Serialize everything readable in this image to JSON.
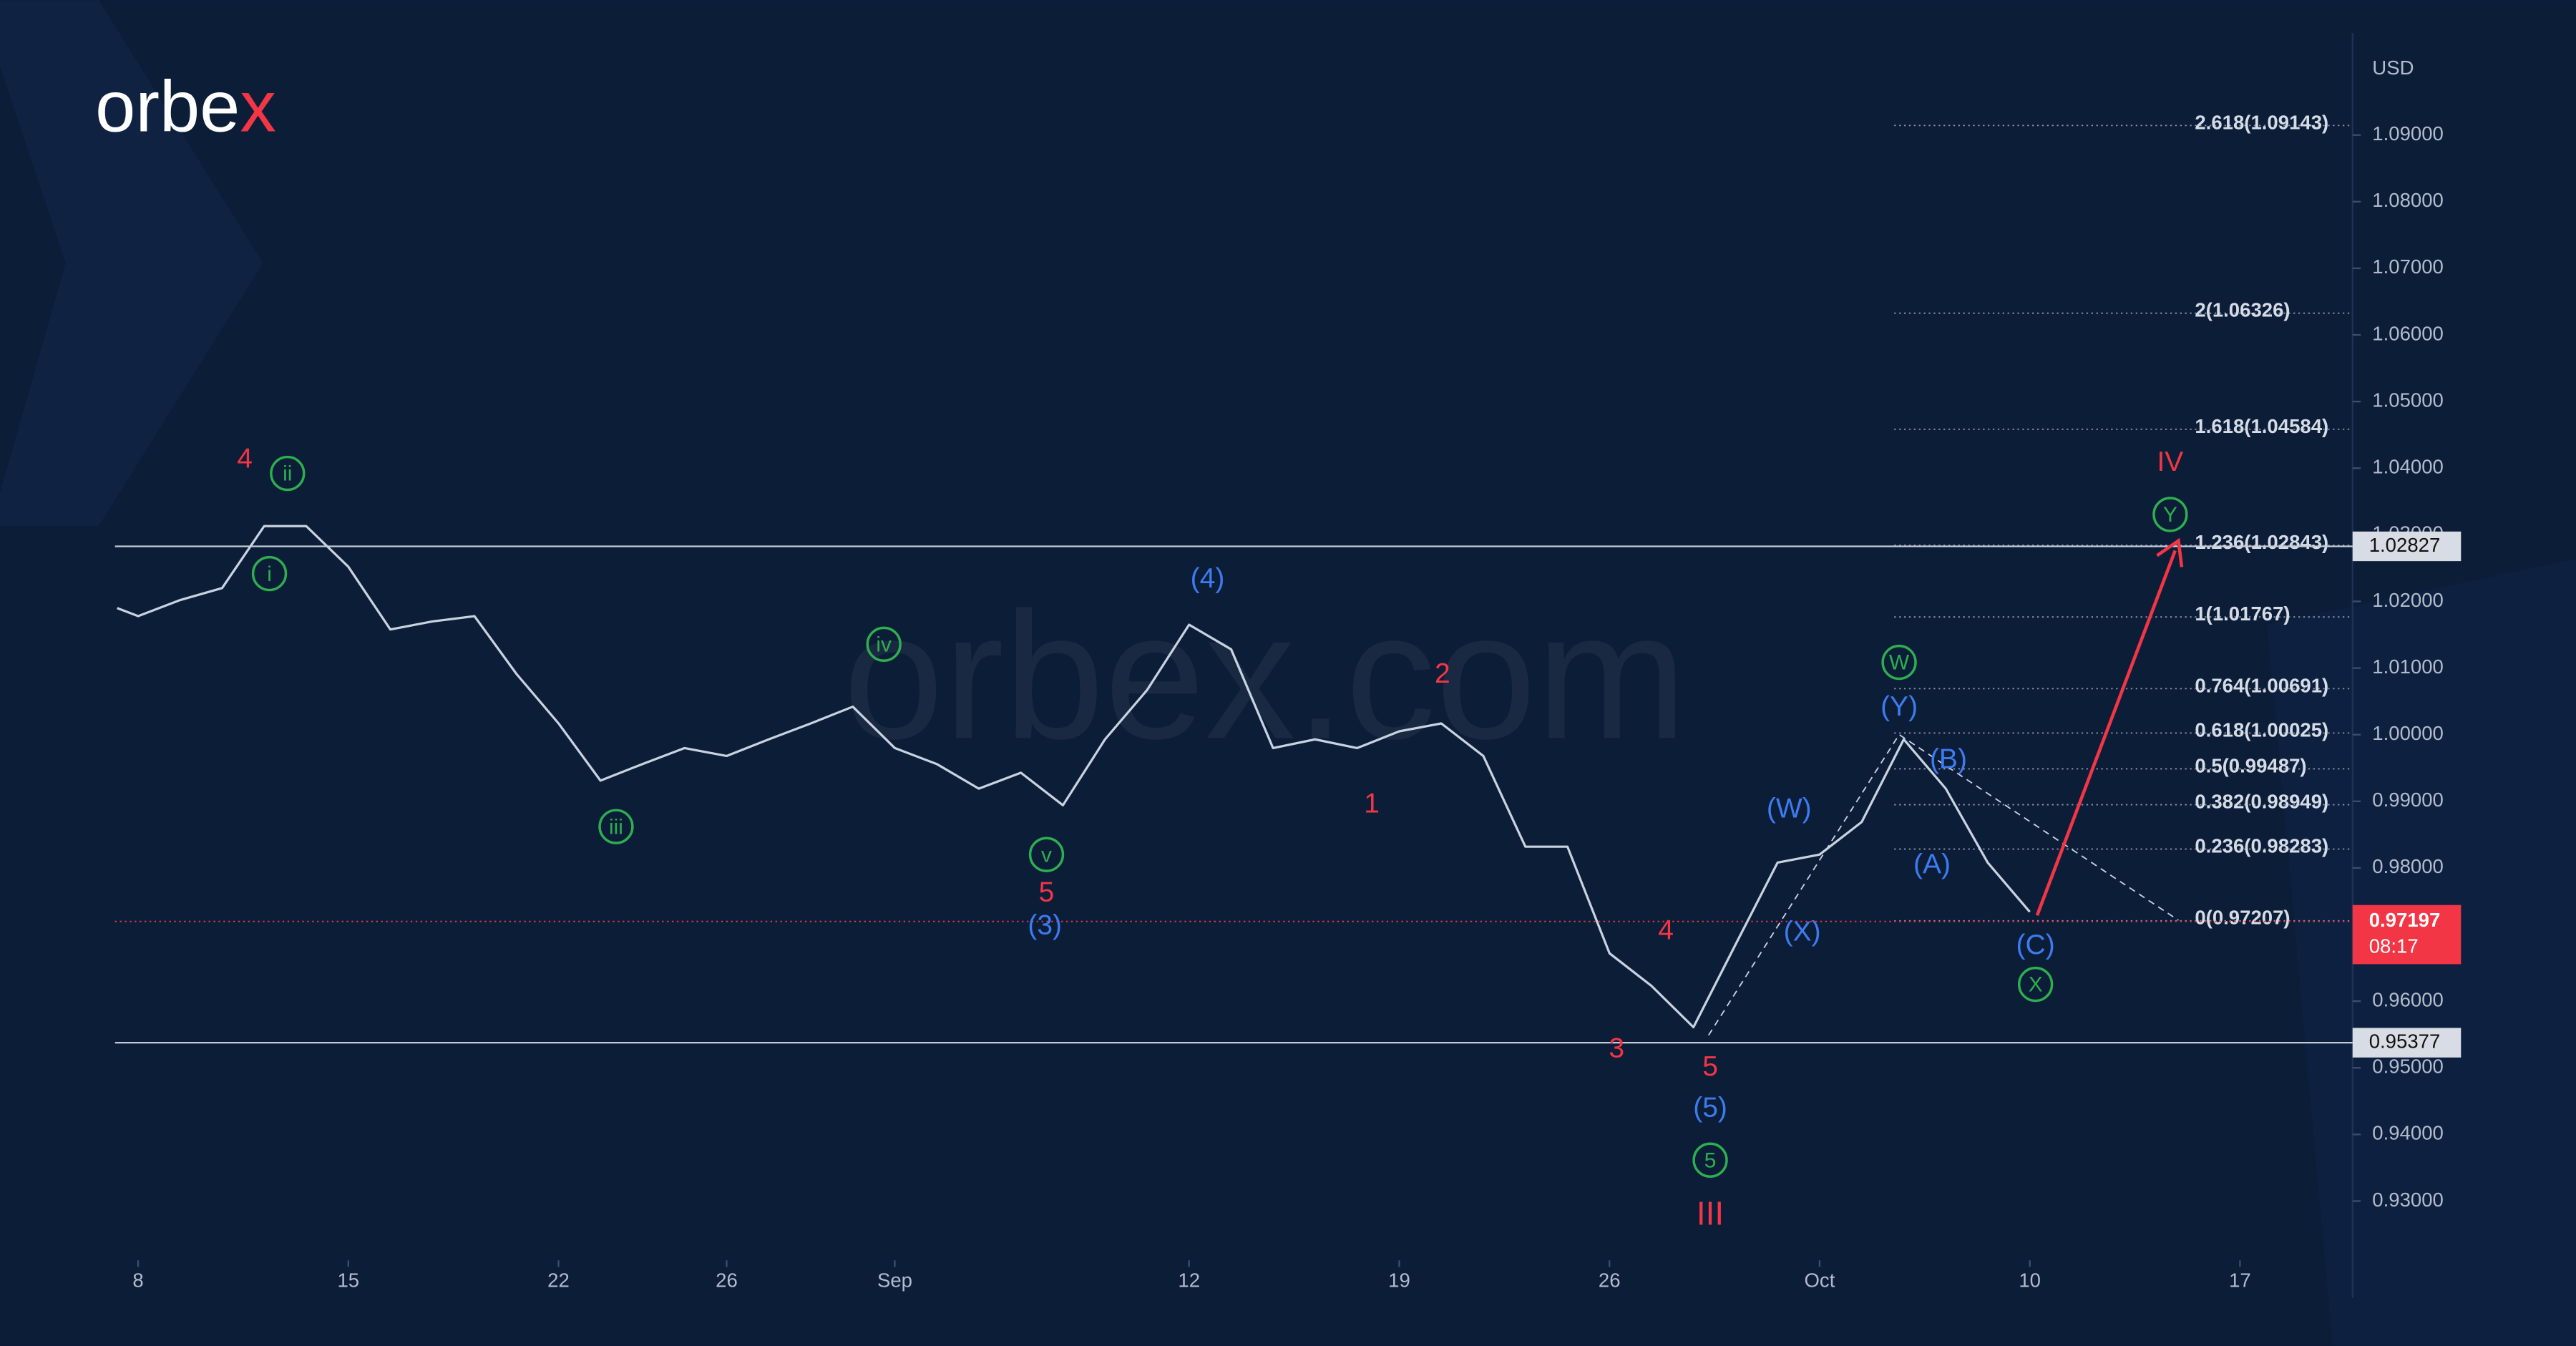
{
  "chart_data": {
    "type": "line",
    "logo": [
      "orbe",
      "x"
    ],
    "watermark": "orbex.com",
    "y_label": "USD",
    "x": [
      -0.5,
      0,
      1,
      2,
      3,
      4,
      5,
      6,
      7,
      8,
      9,
      10,
      11,
      12,
      13,
      14,
      15,
      16,
      17,
      18,
      19,
      20,
      21,
      22,
      23,
      24,
      25,
      26,
      27,
      28,
      29,
      30,
      31,
      32,
      33,
      34,
      35,
      36,
      37,
      38,
      39,
      40,
      41,
      42,
      43,
      44,
      45
    ],
    "series": [
      {
        "color": "#c9d3e0",
        "values": [
          1.019,
          1.0178,
          1.0202,
          1.022,
          1.0313,
          1.0313,
          1.0252,
          1.0158,
          1.017,
          1.0178,
          1.0091,
          1.0017,
          0.9931,
          0.9956,
          0.998,
          0.9968,
          0.9993,
          1.0017,
          1.0042,
          0.998,
          0.9956,
          0.9919,
          0.9943,
          0.9894,
          0.9993,
          1.0067,
          1.0165,
          1.0128,
          0.998,
          0.9993,
          0.998,
          1.0005,
          1.0017,
          0.9968,
          0.9832,
          0.9832,
          0.9672,
          0.9623,
          0.9561,
          0.9685,
          0.9808,
          0.982,
          0.9869,
          0.9993,
          0.9919,
          0.9808,
          0.9734
        ]
      }
    ],
    "xlim": [
      -0.55,
      52.6
    ],
    "xticks": [
      {
        "value": 0,
        "label": "8"
      },
      {
        "value": 5,
        "label": "15"
      },
      {
        "value": 10,
        "label": "22"
      },
      {
        "value": 14,
        "label": "26"
      },
      {
        "value": 18,
        "label": "Sep"
      },
      {
        "value": 25,
        "label": "12"
      },
      {
        "value": 30,
        "label": "19"
      },
      {
        "value": 35,
        "label": "26"
      },
      {
        "value": 40,
        "label": "Oct"
      },
      {
        "value": 45,
        "label": "10"
      },
      {
        "value": 50,
        "label": "17"
      }
    ],
    "ylim": [
      0.9216,
      1.1053
    ],
    "yticks": [
      {
        "value": 0.93,
        "label": "0.93000"
      },
      {
        "value": 0.94,
        "label": "0.94000"
      },
      {
        "value": 0.95,
        "label": "0.95000"
      },
      {
        "value": 0.96,
        "label": "0.96000"
      },
      {
        "value": 0.97,
        "label": "0.97000"
      },
      {
        "value": 0.98,
        "label": "0.98000"
      },
      {
        "value": 0.99,
        "label": "0.99000"
      },
      {
        "value": 1.0,
        "label": "1.00000"
      },
      {
        "value": 1.01,
        "label": "1.01000"
      },
      {
        "value": 1.02,
        "label": "1.02000"
      },
      {
        "value": 1.03,
        "label": "1.03000"
      },
      {
        "value": 1.04,
        "label": "1.04000"
      },
      {
        "value": 1.05,
        "label": "1.05000"
      },
      {
        "value": 1.06,
        "label": "1.06000"
      },
      {
        "value": 1.07,
        "label": "1.07000"
      },
      {
        "value": 1.08,
        "label": "1.08000"
      },
      {
        "value": 1.09,
        "label": "1.09000"
      }
    ],
    "fib_levels": [
      {
        "value": 1.09143,
        "label": "2.618(1.09143)"
      },
      {
        "value": 1.06326,
        "label": "2(1.06326)"
      },
      {
        "value": 1.04584,
        "label": "1.618(1.04584)"
      },
      {
        "value": 1.02843,
        "label": "1.236(1.02843)"
      },
      {
        "value": 1.01767,
        "label": "1(1.01767)"
      },
      {
        "value": 1.00691,
        "label": "0.764(1.00691)"
      },
      {
        "value": 1.00025,
        "label": "0.618(1.00025)"
      },
      {
        "value": 0.99487,
        "label": "0.5(0.99487)"
      },
      {
        "value": 0.98949,
        "label": "0.382(0.98949)"
      },
      {
        "value": 0.98283,
        "label": "0.236(0.98283)"
      },
      {
        "value": 0.97207,
        "label": "0(0.97207)"
      }
    ],
    "price_lines": [
      {
        "value": 1.02827,
        "label": "1.02827"
      },
      {
        "value": 0.95377,
        "label": "0.95377"
      }
    ],
    "current_price": {
      "value": 0.97197,
      "label": "0.97197",
      "timer": "08:17",
      "color": "#f23645"
    },
    "wave_labels": [
      {
        "text": "4",
        "color": "#f23645"
      },
      {
        "text": "ii",
        "color": "#2fae4f",
        "circled": true
      },
      {
        "text": "i",
        "color": "#2fae4f",
        "circled": true
      },
      {
        "text": "iii",
        "color": "#2fae4f",
        "circled": true
      },
      {
        "text": "iv",
        "color": "#2fae4f",
        "circled": true
      },
      {
        "text": "v",
        "color": "#2fae4f",
        "circled": true
      },
      {
        "text": "5",
        "color": "#f23645"
      },
      {
        "text": "(3)",
        "color": "#3d7bf0"
      },
      {
        "text": "(4)",
        "color": "#3d7bf0"
      },
      {
        "text": "2",
        "color": "#f23645"
      },
      {
        "text": "1",
        "color": "#f23645"
      },
      {
        "text": "3",
        "color": "#f23645"
      },
      {
        "text": "4",
        "color": "#f23645"
      },
      {
        "text": "5",
        "color": "#f23645"
      },
      {
        "text": "(5)",
        "color": "#3d7bf0"
      },
      {
        "text": "5",
        "color": "#2fae4f",
        "circled": true
      },
      {
        "text": "III",
        "color": "#f23645"
      },
      {
        "text": "(W)",
        "color": "#3d7bf0"
      },
      {
        "text": "(X)",
        "color": "#3d7bf0"
      },
      {
        "text": "W",
        "color": "#2fae4f",
        "circled": true
      },
      {
        "text": "(Y)",
        "color": "#3d7bf0"
      },
      {
        "text": "(B)",
        "color": "#3d7bf0"
      },
      {
        "text": "(A)",
        "color": "#3d7bf0"
      },
      {
        "text": "(C)",
        "color": "#3d7bf0"
      },
      {
        "text": "X",
        "color": "#2fae4f",
        "circled": true
      },
      {
        "text": "Y",
        "color": "#2fae4f",
        "circled": true
      },
      {
        "text": "IV",
        "color": "#f23645"
      }
    ]
  }
}
